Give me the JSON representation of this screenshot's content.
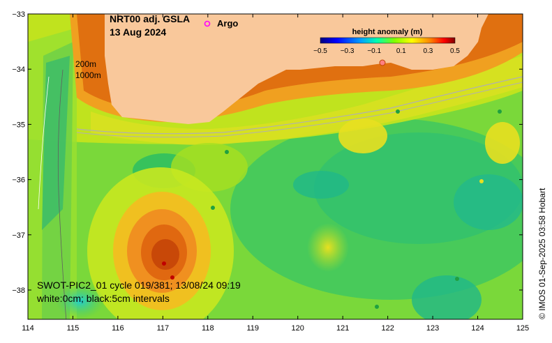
{
  "map": {
    "product_title": "NRT00 adj. GSLA",
    "date": "13 Aug 2024",
    "argo_label": "Argo",
    "colorbar_title": "height anomaly (m)",
    "colorbar_ticks": [
      "−0.5",
      "−0.3",
      "−0.1",
      "0.1",
      "0.3",
      "0.5"
    ],
    "colorbar_colors": [
      "#00007f",
      "#0000ff",
      "#0080ff",
      "#00ffff",
      "#00ff80",
      "#80ff00",
      "#ffff00",
      "#ff8000",
      "#ff0000",
      "#7f0000"
    ],
    "contour_label_1": "200m",
    "contour_label_2": "1000m",
    "swath_info": "SWOT-PIC2_01 cycle 019/381; 13/08/24 09:19",
    "contour_info": "white:0cm; black:5cm intervals",
    "credit": "© IMOS 01-Sep-2025 03:58 Hobart",
    "x_ticks": [
      "114",
      "115",
      "116",
      "117",
      "118",
      "119",
      "120",
      "121",
      "122",
      "123",
      "124",
      "125"
    ],
    "y_ticks": [
      "−33",
      "−34",
      "−35",
      "−36",
      "−37",
      "−38"
    ],
    "land_color": "#f9c89b",
    "argo_marker_color": "#ff00ff"
  }
}
